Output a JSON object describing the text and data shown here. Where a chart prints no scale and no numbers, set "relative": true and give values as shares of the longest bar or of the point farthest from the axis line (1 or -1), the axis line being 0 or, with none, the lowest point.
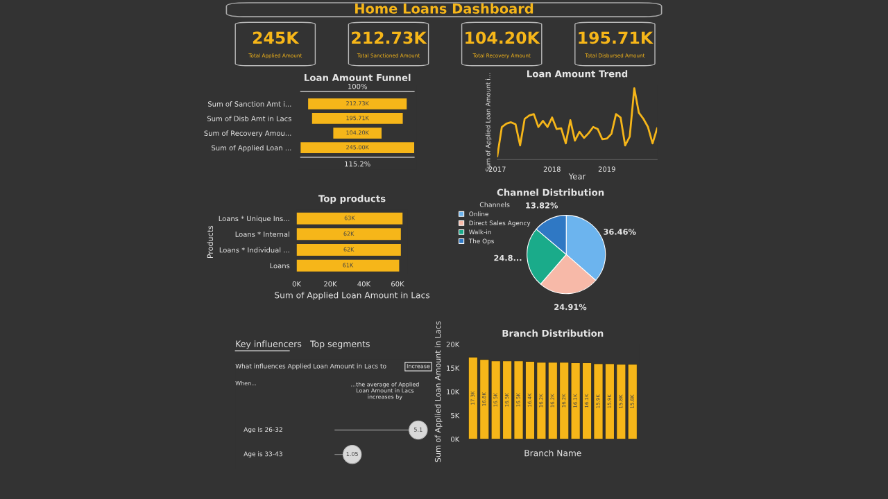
{
  "chart_data": [
    {
      "type": "other",
      "title": "Home Loans Dashboard",
      "annotations": [
        "245K",
        "Total Applied Amount",
        "212.73K",
        "Total Sanctioned Amount",
        "104.20K",
        "Total Recovery Amount",
        "195.71K",
        "Total Disbursed Amount"
      ]
    },
    {
      "type": "other",
      "title": "Loan Amount Funnel",
      "categories": [
        "Sum of Sanction Amt i...",
        "Sum of Disb Amt in Lacs",
        "Sum of Recovery Amou...",
        "Sum of Applied Loan ..."
      ],
      "values": [
        212.73,
        195.71,
        104.2,
        245.0
      ],
      "value_labels": [
        "212.73K",
        "195.71K",
        "104.20K",
        "245.00K"
      ],
      "color": "#f6b619",
      "annotations": [
        "100%",
        "115.2%"
      ]
    },
    {
      "type": "line",
      "title": "Loan Amount Trend",
      "xlabel": "Year",
      "ylabel": "Sum of Applied Loan Amount i...",
      "relative": true,
      "color": "#f6b619",
      "x": [
        "2017-01",
        "2017-02",
        "2017-03",
        "2017-04",
        "2017-05",
        "2017-06",
        "2017-07",
        "2017-08",
        "2017-09",
        "2017-10",
        "2017-11",
        "2017-12",
        "2018-01",
        "2018-02",
        "2018-03",
        "2018-04",
        "2018-05",
        "2018-06",
        "2018-07",
        "2018-08",
        "2018-09",
        "2018-10",
        "2018-11",
        "2018-12",
        "2019-01",
        "2019-02",
        "2019-03",
        "2019-04",
        "2019-05",
        "2019-06",
        "2019-07",
        "2019-08",
        "2019-09",
        "2019-10",
        "2019-11",
        "2019-12"
      ],
      "values": [
        0,
        0.43,
        0.48,
        0.5,
        0.47,
        0.16,
        0.55,
        0.6,
        0.62,
        0.43,
        0.52,
        0.43,
        0.57,
        0.4,
        0.41,
        0.19,
        0.53,
        0.23,
        0.36,
        0.27,
        0.34,
        0.43,
        0.4,
        0.25,
        0.26,
        0.33,
        0.62,
        0.57,
        0.16,
        0.29,
        1.0,
        0.64,
        0.55,
        0.43,
        0.19,
        0.41
      ],
      "xlim": [
        "2017-01",
        "2019-12"
      ],
      "xticks": [
        {
          "value": "2017-01",
          "label": "2017"
        },
        {
          "value": "2018-01",
          "label": "2018"
        },
        {
          "value": "2019-01",
          "label": "2019"
        }
      ]
    },
    {
      "type": "bar",
      "orientation": "horizontal",
      "title": "Top products",
      "xlabel": "Sum of Applied Loan Amount in Lacs",
      "ylabel": "Products",
      "color": "#f6b619",
      "categories": [
        "Loans * Unique Ins...",
        "Loans * Internal",
        "Loans * Individual ...",
        "Loans"
      ],
      "values": [
        63,
        62,
        62,
        61
      ],
      "value_labels": [
        "63K",
        "62K",
        "62K",
        "61K"
      ],
      "xlim": [
        0,
        66
      ],
      "xticks": [
        {
          "value": 0,
          "label": "0K"
        },
        {
          "value": 20,
          "label": "20K"
        },
        {
          "value": 40,
          "label": "40K"
        },
        {
          "value": 60,
          "label": "60K"
        }
      ]
    },
    {
      "type": "pie",
      "title": "Channel Distribution",
      "legend_title": "Channels",
      "legend": "top left",
      "categories": [
        "Online",
        "Direct Sales Agency",
        "Walk-in",
        "The Ops"
      ],
      "values": [
        36.46,
        24.91,
        24.81,
        13.82
      ],
      "value_labels": [
        "36.46%",
        "24.91%",
        "24.8...",
        "13.82%"
      ],
      "colors": [
        "#6cb4ee",
        "#f7b9a8",
        "#1aab8a",
        "#2f78c4"
      ]
    },
    {
      "type": "lollipop",
      "orientation": "horizontal",
      "title": "Key influencers",
      "subtitle": "Top segments",
      "categories": [
        "Age is 26-32",
        "Age is 33-43"
      ],
      "values": [
        5.1,
        1.05
      ],
      "data_labels": true,
      "color": "#d9d9d9",
      "annotations": [
        "What influences Applied Loan Amount in Lacs to",
        "Increase",
        "When...",
        "...the average of Applied Loan Amount in Lacs increases by"
      ]
    },
    {
      "type": "bar",
      "title": "Branch Distribution",
      "xlabel": "Branch Name",
      "ylabel": "Sum of Applied Loan Amount in Lacs",
      "color": "#f6b619",
      "categories": [
        null,
        null,
        null,
        null,
        null,
        null,
        null,
        null,
        null,
        null,
        null,
        null,
        null,
        null,
        null
      ],
      "values": [
        17.3,
        16.8,
        16.5,
        16.5,
        16.5,
        16.4,
        16.2,
        16.2,
        16.2,
        16.1,
        16.1,
        15.9,
        15.9,
        15.8,
        15.8
      ],
      "value_labels": [
        "17.3K",
        "16.8K",
        "16.5K",
        "16.5K",
        "16.5K",
        "16.4K",
        "16.2K",
        "16.2K",
        "16.2K",
        "16.1K",
        "16.1K",
        "15.9K",
        "15.9K",
        "15.8K",
        "15.8K"
      ],
      "ylim": [
        0,
        20
      ],
      "yticks": [
        {
          "value": 0,
          "label": "0K"
        },
        {
          "value": 5,
          "label": "5K"
        },
        {
          "value": 10,
          "label": "10K"
        },
        {
          "value": 15,
          "label": "15K"
        },
        {
          "value": 20,
          "label": "20K"
        }
      ]
    }
  ]
}
